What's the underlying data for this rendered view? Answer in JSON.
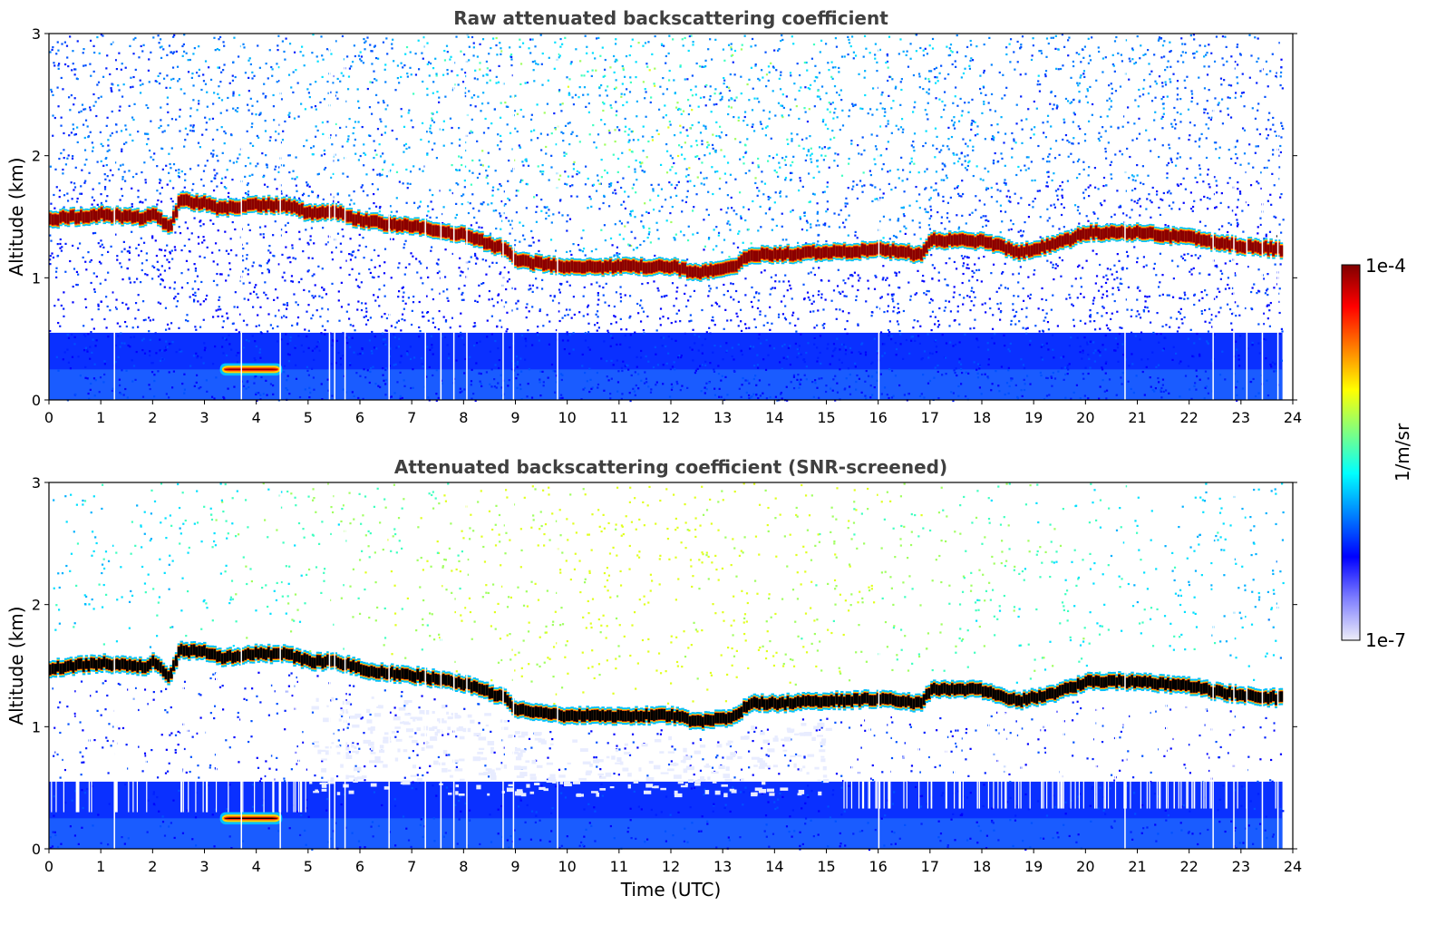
{
  "chart_data": [
    {
      "type": "heatmap",
      "title": "Raw attenuated backscattering coefficient",
      "xlabel": "",
      "ylabel": "Altitude (km)",
      "xlim": [
        0,
        24
      ],
      "ylim": [
        0,
        3
      ],
      "xticks": [
        "0",
        "1",
        "2",
        "3",
        "4",
        "5",
        "6",
        "7",
        "8",
        "9",
        "10",
        "11",
        "12",
        "13",
        "14",
        "15",
        "16",
        "17",
        "18",
        "19",
        "20",
        "21",
        "22",
        "23",
        "24"
      ],
      "yticks": [
        "0",
        "1",
        "2",
        "3"
      ],
      "screened": false
    },
    {
      "type": "heatmap",
      "title": "Attenuated backscattering coefficient (SNR-screened)",
      "xlabel": "Time (UTC)",
      "ylabel": "Altitude (km)",
      "xlim": [
        0,
        24
      ],
      "ylim": [
        0,
        3
      ],
      "xticks": [
        "0",
        "1",
        "2",
        "3",
        "4",
        "5",
        "6",
        "7",
        "8",
        "9",
        "10",
        "11",
        "12",
        "13",
        "14",
        "15",
        "16",
        "17",
        "18",
        "19",
        "20",
        "21",
        "22",
        "23",
        "24"
      ],
      "yticks": [
        "0",
        "1",
        "2",
        "3"
      ],
      "screened": true
    }
  ],
  "colorbar": {
    "label": "1/m/sr",
    "max_label": "1e-4",
    "min_label": "1e-7",
    "colors": [
      "#ededf8",
      "#7f7fff",
      "#0000ff",
      "#0080ff",
      "#00ffff",
      "#80ff80",
      "#ffff00",
      "#ff8000",
      "#ff0000",
      "#800000"
    ]
  },
  "cloud_layer": {
    "description_values_km": "Cloud base height vs time (hours)",
    "time": [
      0,
      1,
      1.8,
      2.0,
      2.3,
      2.5,
      3.0,
      3.3,
      3.6,
      4.0,
      4.6,
      5.0,
      5.5,
      6.0,
      6.5,
      7.0,
      8.0,
      8.8,
      9.0,
      10.0,
      11.0,
      12.0,
      12.5,
      13.2,
      13.5,
      14.0,
      15.0,
      16.0,
      16.8,
      17.0,
      18.0,
      18.7,
      19.0,
      19.5,
      20.0,
      21.0,
      22.0,
      22.5,
      23.0,
      23.8
    ],
    "base_km": [
      1.37,
      1.41,
      1.38,
      1.42,
      1.3,
      1.52,
      1.5,
      1.45,
      1.47,
      1.49,
      1.48,
      1.42,
      1.43,
      1.36,
      1.33,
      1.31,
      1.24,
      1.12,
      1.03,
      0.98,
      0.98,
      0.98,
      0.93,
      0.97,
      1.08,
      1.08,
      1.1,
      1.12,
      1.08,
      1.2,
      1.19,
      1.1,
      1.13,
      1.18,
      1.26,
      1.26,
      1.22,
      1.18,
      1.15,
      1.12
    ]
  },
  "aerosol_patch": {
    "time_start": 3.2,
    "time_end": 4.6,
    "alt_km": [
      0.2,
      0.3
    ]
  }
}
